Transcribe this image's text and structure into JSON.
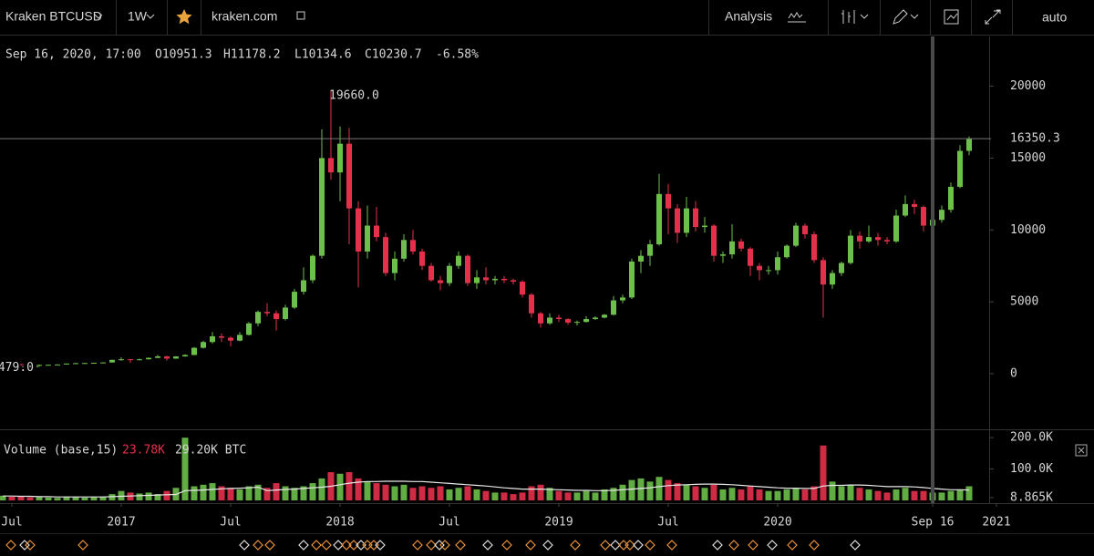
{
  "toolbar": {
    "symbol": "Kraken BTCUSD",
    "interval": "1W",
    "site": "kraken.com",
    "analysis": "Analysis",
    "scale": "auto"
  },
  "header": {
    "date": "Sep 16, 2020, 17:00",
    "open": "O10951.3",
    "high": "H11178.2",
    "low": "L10134.6",
    "close": "C10230.7",
    "change": "-6.58%"
  },
  "chart_data": [
    {
      "type": "candlestick",
      "up_color": "#6cbf4a",
      "down_color": "#e5304c",
      "xlim": [
        -0.3,
        108.2
      ],
      "xticks": [
        {
          "value": 1,
          "label": "Jul"
        },
        {
          "value": 13,
          "label": "2017"
        },
        {
          "value": 25,
          "label": "Jul"
        },
        {
          "value": 37,
          "label": "2018"
        },
        {
          "value": 49,
          "label": "Jul"
        },
        {
          "value": 61,
          "label": "2019"
        },
        {
          "value": 73,
          "label": "Jul"
        },
        {
          "value": 85,
          "label": "2020"
        },
        {
          "value": 102,
          "label": "Sep 16"
        },
        {
          "value": 109,
          "label": "2021"
        }
      ],
      "ylim": [
        -3490,
        23460
      ],
      "yticks": [
        0,
        5000,
        10000,
        15000,
        20000
      ],
      "last_price": {
        "value": 16350.3,
        "label": "16350.3"
      },
      "annotations": [
        {
          "value": 19660,
          "label": "19660.0"
        },
        {
          "value": 479,
          "label": "479.0"
        }
      ],
      "values": [
        [
          650,
          720,
          630,
          680
        ],
        [
          680,
          700,
          600,
          660
        ],
        [
          660,
          680,
          560,
          620
        ],
        [
          620,
          640,
          560,
          600
        ],
        [
          600,
          630,
          479,
          610
        ],
        [
          610,
          630,
          590,
          620
        ],
        [
          620,
          650,
          600,
          640
        ],
        [
          640,
          720,
          630,
          700
        ],
        [
          700,
          750,
          690,
          730
        ],
        [
          730,
          760,
          700,
          740
        ],
        [
          740,
          770,
          720,
          760
        ],
        [
          760,
          800,
          740,
          780
        ],
        [
          780,
          980,
          770,
          960
        ],
        [
          960,
          1150,
          900,
          1000
        ],
        [
          1000,
          1020,
          750,
          950
        ],
        [
          950,
          1050,
          920,
          1000
        ],
        [
          1000,
          1130,
          980,
          1100
        ],
        [
          1100,
          1300,
          1080,
          1200
        ],
        [
          1200,
          1250,
          900,
          1050
        ],
        [
          1050,
          1220,
          1030,
          1200
        ],
        [
          1200,
          1350,
          1180,
          1300
        ],
        [
          1300,
          1850,
          1280,
          1800
        ],
        [
          1800,
          2300,
          1750,
          2200
        ],
        [
          2200,
          2900,
          2100,
          2600
        ],
        [
          2600,
          2800,
          2200,
          2500
        ],
        [
          2500,
          2600,
          1900,
          2300
        ],
        [
          2300,
          2900,
          2250,
          2700
        ],
        [
          2700,
          3600,
          2650,
          3500
        ],
        [
          3500,
          4400,
          3300,
          4300
        ],
        [
          4300,
          4900,
          4000,
          4200
        ],
        [
          4200,
          4400,
          3000,
          3800
        ],
        [
          3800,
          4800,
          3700,
          4600
        ],
        [
          4600,
          5900,
          4500,
          5700
        ],
        [
          5700,
          7400,
          5500,
          6500
        ],
        [
          6500,
          8300,
          6300,
          8200
        ],
        [
          8200,
          17000,
          8000,
          15000
        ],
        [
          15000,
          19660,
          13500,
          14000
        ],
        [
          14000,
          17200,
          12000,
          16000
        ],
        [
          16000,
          17100,
          9000,
          11500
        ],
        [
          11500,
          12000,
          6000,
          8500
        ],
        [
          8500,
          11700,
          8000,
          10300
        ],
        [
          10300,
          11600,
          9200,
          9500
        ],
        [
          9500,
          9800,
          6800,
          7000
        ],
        [
          7000,
          8500,
          6500,
          8000
        ],
        [
          8000,
          9700,
          7800,
          9300
        ],
        [
          9300,
          10000,
          8300,
          8500
        ],
        [
          8500,
          8700,
          7200,
          7500
        ],
        [
          7500,
          7700,
          6400,
          6500
        ],
        [
          6500,
          6800,
          5800,
          6300
        ],
        [
          6300,
          7700,
          6100,
          7500
        ],
        [
          7500,
          8500,
          7300,
          8200
        ],
        [
          8200,
          8300,
          6100,
          6300
        ],
        [
          6300,
          7200,
          5900,
          6700
        ],
        [
          6700,
          7400,
          6200,
          6500
        ],
        [
          6500,
          6800,
          6200,
          6600
        ],
        [
          6600,
          6800,
          6300,
          6500
        ],
        [
          6500,
          6600,
          6200,
          6400
        ],
        [
          6400,
          6500,
          5300,
          5500
        ],
        [
          5500,
          5600,
          3900,
          4200
        ],
        [
          4200,
          4300,
          3200,
          3500
        ],
        [
          3500,
          4200,
          3400,
          3900
        ],
        [
          3900,
          4100,
          3600,
          3800
        ],
        [
          3800,
          3850,
          3400,
          3550
        ],
        [
          3550,
          3700,
          3350,
          3600
        ],
        [
          3600,
          4000,
          3550,
          3800
        ],
        [
          3800,
          4000,
          3750,
          3900
        ],
        [
          3900,
          4150,
          3850,
          4100
        ],
        [
          4100,
          5400,
          4050,
          5100
        ],
        [
          5100,
          5500,
          4900,
          5300
        ],
        [
          5300,
          8000,
          5200,
          7800
        ],
        [
          7800,
          8600,
          7000,
          8200
        ],
        [
          8200,
          9300,
          7500,
          9000
        ],
        [
          9000,
          13900,
          8900,
          12500
        ],
        [
          12500,
          13200,
          9700,
          11500
        ],
        [
          11500,
          11800,
          9100,
          9800
        ],
        [
          9800,
          12300,
          9500,
          11500
        ],
        [
          11500,
          12000,
          9900,
          10200
        ],
        [
          10200,
          10900,
          9800,
          10300
        ],
        [
          10300,
          10400,
          7800,
          8200
        ],
        [
          8200,
          8500,
          7700,
          8300
        ],
        [
          8300,
          10400,
          8000,
          9200
        ],
        [
          9200,
          9400,
          8500,
          8700
        ],
        [
          8700,
          8800,
          6800,
          7500
        ],
        [
          7500,
          7700,
          6500,
          7200
        ],
        [
          7200,
          7500,
          6900,
          7200
        ],
        [
          7200,
          8500,
          6900,
          8100
        ],
        [
          8100,
          9000,
          8000,
          8900
        ],
        [
          8900,
          10500,
          8800,
          10300
        ],
        [
          10300,
          10450,
          9400,
          9700
        ],
        [
          9700,
          9900,
          7700,
          7900
        ],
        [
          7900,
          8100,
          3900,
          6200
        ],
        [
          6200,
          7200,
          5900,
          7000
        ],
        [
          7000,
          7800,
          6800,
          7700
        ],
        [
          7700,
          10000,
          7600,
          9600
        ],
        [
          9600,
          9900,
          8700,
          9200
        ],
        [
          9200,
          10300,
          9100,
          9500
        ],
        [
          9500,
          9800,
          8900,
          9300
        ],
        [
          9300,
          9500,
          9000,
          9200
        ],
        [
          9200,
          11400,
          9100,
          11000
        ],
        [
          11000,
          12400,
          10900,
          11800
        ],
        [
          11800,
          12100,
          11100,
          11600
        ],
        [
          11600,
          11700,
          9900,
          10300
        ],
        [
          10300,
          11100,
          10100,
          10700
        ],
        [
          10700,
          11700,
          10500,
          11400
        ],
        [
          11400,
          13300,
          11200,
          13000
        ],
        [
          13000,
          15900,
          12900,
          15500
        ],
        [
          15500,
          16500,
          15200,
          16350
        ]
      ]
    },
    {
      "type": "bar",
      "title": "Volume (base,15)",
      "readout": [
        "23.78K",
        "29.20K BTC"
      ],
      "ylim": [
        0,
        215000
      ],
      "yticks": [
        {
          "value": 200000,
          "label": "200.0K"
        },
        {
          "value": 100000,
          "label": "100.0K"
        },
        {
          "value": 8865,
          "label": "8.865K"
        }
      ],
      "ma_color": "#e8e8e8",
      "values": [
        15000,
        12000,
        14000,
        10000,
        10000,
        9000,
        8000,
        12000,
        10000,
        9000,
        10000,
        12000,
        20000,
        30000,
        25000,
        22000,
        25000,
        20000,
        30000,
        40000,
        200000,
        45000,
        50000,
        55000,
        45000,
        40000,
        35000,
        45000,
        50000,
        40000,
        55000,
        45000,
        40000,
        45000,
        55000,
        70000,
        90000,
        85000,
        90000,
        70000,
        60000,
        55000,
        50000,
        45000,
        50000,
        40000,
        45000,
        40000,
        45000,
        35000,
        40000,
        45000,
        35000,
        30000,
        25000,
        25000,
        20000,
        25000,
        45000,
        50000,
        40000,
        30000,
        25000,
        25000,
        30000,
        25000,
        35000,
        40000,
        50000,
        65000,
        70000,
        60000,
        75000,
        65000,
        55000,
        50000,
        45000,
        40000,
        50000,
        35000,
        40000,
        35000,
        45000,
        35000,
        30000,
        30000,
        35000,
        40000,
        35000,
        45000,
        175000,
        60000,
        45000,
        50000,
        40000,
        35000,
        30000,
        25000,
        35000,
        40000,
        30000,
        30000,
        25000,
        25000,
        30000,
        35000,
        45000
      ],
      "ma": [
        14000,
        14000,
        13000,
        13000,
        12000,
        12000,
        11000,
        11000,
        11000,
        11000,
        11000,
        11000,
        12000,
        13000,
        14000,
        15000,
        16000,
        17000,
        18000,
        19000,
        31000,
        32000,
        33000,
        35000,
        37000,
        38000,
        39000,
        40000,
        42000,
        31000,
        33000,
        35000,
        36000,
        38000,
        40000,
        42000,
        45000,
        50000,
        55000,
        58000,
        60000,
        60000,
        61000,
        61000,
        61000,
        60000,
        60000,
        58000,
        56000,
        54000,
        52000,
        50000,
        48000,
        46000,
        43000,
        40000,
        38000,
        36000,
        36000,
        36000,
        35000,
        34000,
        33000,
        32000,
        32000,
        31000,
        31000,
        32000,
        34000,
        36000,
        38000,
        40000,
        44000,
        47000,
        49000,
        50000,
        51000,
        52000,
        52000,
        51000,
        50000,
        48000,
        46000,
        44000,
        42000,
        40000,
        39000,
        39000,
        38000,
        38000,
        46000,
        48000,
        48000,
        49000,
        49000,
        48000,
        46000,
        44000,
        44000,
        44000,
        43000,
        41000,
        38000,
        36000,
        34000,
        34000,
        33000
      ]
    }
  ]
}
